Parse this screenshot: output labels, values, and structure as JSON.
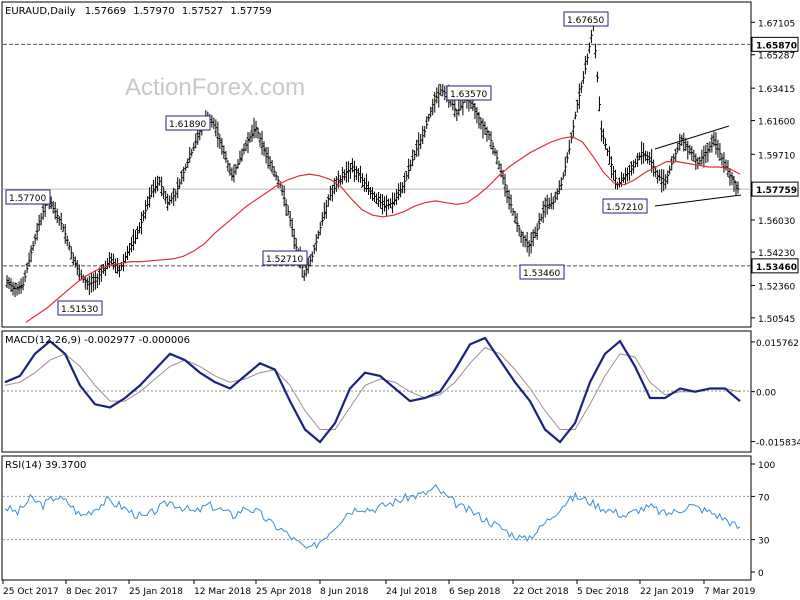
{
  "chart_data": {
    "type": "line",
    "title": "EURAUD,Daily",
    "ohlc": {
      "open": "1.57669",
      "high": "1.57970",
      "low": "1.57527",
      "close": "1.57759"
    },
    "watermark": "ActionForex.com",
    "price_panel": {
      "ylim": [
        1.5009,
        1.6813
      ],
      "ticks": [
        "1.67105",
        "1.65287",
        "1.63415",
        "1.61600",
        "1.59710",
        "1.57759",
        "1.56030",
        "1.54230",
        "1.52360",
        "1.50545"
      ],
      "tick_values": [
        1.67105,
        1.65287,
        1.63415,
        1.616,
        1.5971,
        1.57759,
        1.5603,
        1.5423,
        1.5236,
        1.50545
      ],
      "horizontal_levels": [
        {
          "label": "1.65870",
          "value": 1.6587,
          "style": "dashed",
          "color": "#555555"
        },
        {
          "label": "1.53460",
          "value": 1.5346,
          "style": "dashed",
          "color": "#555555"
        },
        {
          "label": "1.57759",
          "value": 1.57759,
          "style": "solid",
          "color": "#bbbbbb"
        }
      ],
      "annotations": [
        {
          "text": "1.57700",
          "x": 0.5,
          "value": 1.577
        },
        {
          "text": "1.51530",
          "x": 11,
          "value": 1.5153
        },
        {
          "text": "1.61890",
          "x": 27,
          "value": 1.6189
        },
        {
          "text": "1.52710",
          "x": 40,
          "value": 1.5271
        },
        {
          "text": "1.63570",
          "x": 60,
          "value": 1.6357
        },
        {
          "text": "1.53460",
          "x": 75,
          "value": 1.5346
        },
        {
          "text": "1.67650",
          "x": 81.5,
          "value": 1.6765
        },
        {
          "text": "1.57210",
          "x": 86,
          "value": 1.5721
        }
      ],
      "close": [
        1.525,
        1.522,
        1.524,
        1.542,
        1.558,
        1.572,
        1.565,
        1.556,
        1.542,
        1.53,
        1.524,
        1.526,
        1.533,
        1.538,
        1.532,
        1.542,
        1.55,
        1.562,
        1.576,
        1.582,
        1.57,
        1.575,
        1.587,
        1.598,
        1.61,
        1.618,
        1.612,
        1.598,
        1.585,
        1.594,
        1.605,
        1.612,
        1.6,
        1.59,
        1.58,
        1.565,
        1.545,
        1.53,
        1.54,
        1.556,
        1.572,
        1.58,
        1.586,
        1.59,
        1.584,
        1.578,
        1.572,
        1.568,
        1.57,
        1.576,
        1.588,
        1.6,
        1.61,
        1.625,
        1.633,
        1.63,
        1.62,
        1.628,
        1.625,
        1.615,
        1.608,
        1.595,
        1.58,
        1.565,
        1.552,
        1.546,
        1.555,
        1.568,
        1.57,
        1.58,
        1.6,
        1.625,
        1.645,
        1.67,
        1.61,
        1.595,
        1.58,
        1.585,
        1.59,
        1.598,
        1.595,
        1.585,
        1.582,
        1.595,
        1.605,
        1.6,
        1.592,
        1.598,
        1.605,
        1.595,
        1.585,
        1.5776
      ],
      "sma_red": [
        1.503,
        1.507,
        1.511,
        1.516,
        1.521,
        1.526,
        1.53,
        1.533,
        1.535,
        1.536,
        1.537,
        1.537,
        1.5375,
        1.538,
        1.5385,
        1.54,
        1.543,
        1.547,
        1.553,
        1.558,
        1.563,
        1.568,
        1.572,
        1.576,
        1.58,
        1.583,
        1.585,
        1.586,
        1.585,
        1.583,
        1.579,
        1.572,
        1.566,
        1.563,
        1.562,
        1.563,
        1.565,
        1.568,
        1.57,
        1.571,
        1.57,
        1.569,
        1.57,
        1.574,
        1.579,
        1.585,
        1.59,
        1.594,
        1.598,
        1.601,
        1.604,
        1.606,
        1.607,
        1.604,
        1.596,
        1.587,
        1.581,
        1.58,
        1.583,
        1.587,
        1.59,
        1.593,
        1.593,
        1.592,
        1.591,
        1.59,
        1.59,
        1.589,
        1.586
      ],
      "sma_x": [
        0,
        2,
        4,
        6,
        8,
        10,
        12,
        14,
        16,
        18,
        20,
        22,
        24,
        26,
        28,
        30,
        32,
        34,
        36,
        38,
        40,
        42,
        44,
        46,
        48,
        50,
        52,
        54,
        56,
        58,
        60,
        62,
        64,
        66,
        68,
        70,
        72,
        74,
        76,
        78,
        80,
        82,
        84,
        86,
        88,
        90,
        92,
        94,
        96,
        98,
        100,
        102,
        104,
        106,
        108,
        110,
        112,
        114,
        116,
        118,
        120,
        122,
        124,
        126,
        128,
        130,
        132,
        134,
        136
      ]
    },
    "macd_panel": {
      "label": "MACD(12,26,9) -0.002977 -0.000006",
      "ticks": [
        "0.015762",
        "0.00",
        "-0.015834"
      ],
      "tick_values": [
        0.015762,
        0,
        -0.015834
      ],
      "ylim": [
        -0.0185,
        0.0186
      ],
      "macd": [
        0.003,
        0.005,
        0.012,
        0.016,
        0.012,
        0.002,
        -0.004,
        -0.005,
        -0.002,
        0.002,
        0.007,
        0.012,
        0.01,
        0.006,
        0.003,
        0.001,
        0.005,
        0.009,
        0.007,
        -0.003,
        -0.012,
        -0.016,
        -0.01,
        0.001,
        0.006,
        0.005,
        0.001,
        -0.003,
        -0.002,
        0.0,
        0.007,
        0.015,
        0.017,
        0.01,
        0.003,
        -0.003,
        -0.012,
        -0.016,
        -0.01,
        0.003,
        0.012,
        0.016,
        0.008,
        -0.002,
        -0.002,
        0.001,
        0.0,
        0.001,
        0.001,
        -0.003
      ],
      "signal": [
        0.002,
        0.003,
        0.006,
        0.01,
        0.012,
        0.008,
        0.002,
        -0.003,
        -0.003,
        0.0,
        0.004,
        0.008,
        0.01,
        0.008,
        0.005,
        0.003,
        0.004,
        0.006,
        0.007,
        0.002,
        -0.006,
        -0.012,
        -0.012,
        -0.005,
        0.002,
        0.004,
        0.003,
        0.0,
        -0.002,
        -0.001,
        0.003,
        0.009,
        0.014,
        0.012,
        0.007,
        0.001,
        -0.006,
        -0.012,
        -0.012,
        -0.004,
        0.005,
        0.012,
        0.011,
        0.003,
        -0.001,
        0.0,
        0.0,
        0.001,
        0.001,
        -0.0
      ]
    },
    "rsi_panel": {
      "label": "RSI(14) 39.3700",
      "ticks": [
        "100",
        "70",
        "30",
        "0"
      ],
      "tick_values": [
        100,
        70,
        30,
        0
      ],
      "ylim": [
        0,
        100
      ],
      "levels": [
        70,
        30
      ],
      "rsi": [
        60,
        55,
        68,
        62,
        70,
        64,
        52,
        58,
        66,
        62,
        55,
        50,
        58,
        65,
        60,
        55,
        62,
        58,
        52,
        60,
        55,
        45,
        38,
        28,
        20,
        30,
        42,
        55,
        60,
        58,
        62,
        66,
        70,
        72,
        78,
        68,
        60,
        55,
        48,
        42,
        35,
        30,
        38,
        50,
        62,
        70,
        66,
        60,
        56,
        52,
        58,
        60,
        54,
        56,
        62,
        58,
        54,
        48,
        40
      ]
    },
    "x_axis": {
      "labels": [
        "25 Oct 2017",
        "8 Dec 2017",
        "25 Jan 2018",
        "12 Mar 2018",
        "25 Apr 2018",
        "8 Jun 2018",
        "24 Jul 2018",
        "6 Sep 2018",
        "22 Oct 2018",
        "5 Dec 2018",
        "22 Jan 2019",
        "7 Mar 2019"
      ]
    }
  },
  "colors": {
    "bars": "#000000",
    "sma": "#e0303a",
    "macd": "#1a237e",
    "signal": "#a08c98",
    "rsi": "#3a8ed8",
    "label_box_border": "#1a237e",
    "label_box_text": "#1a237e"
  }
}
